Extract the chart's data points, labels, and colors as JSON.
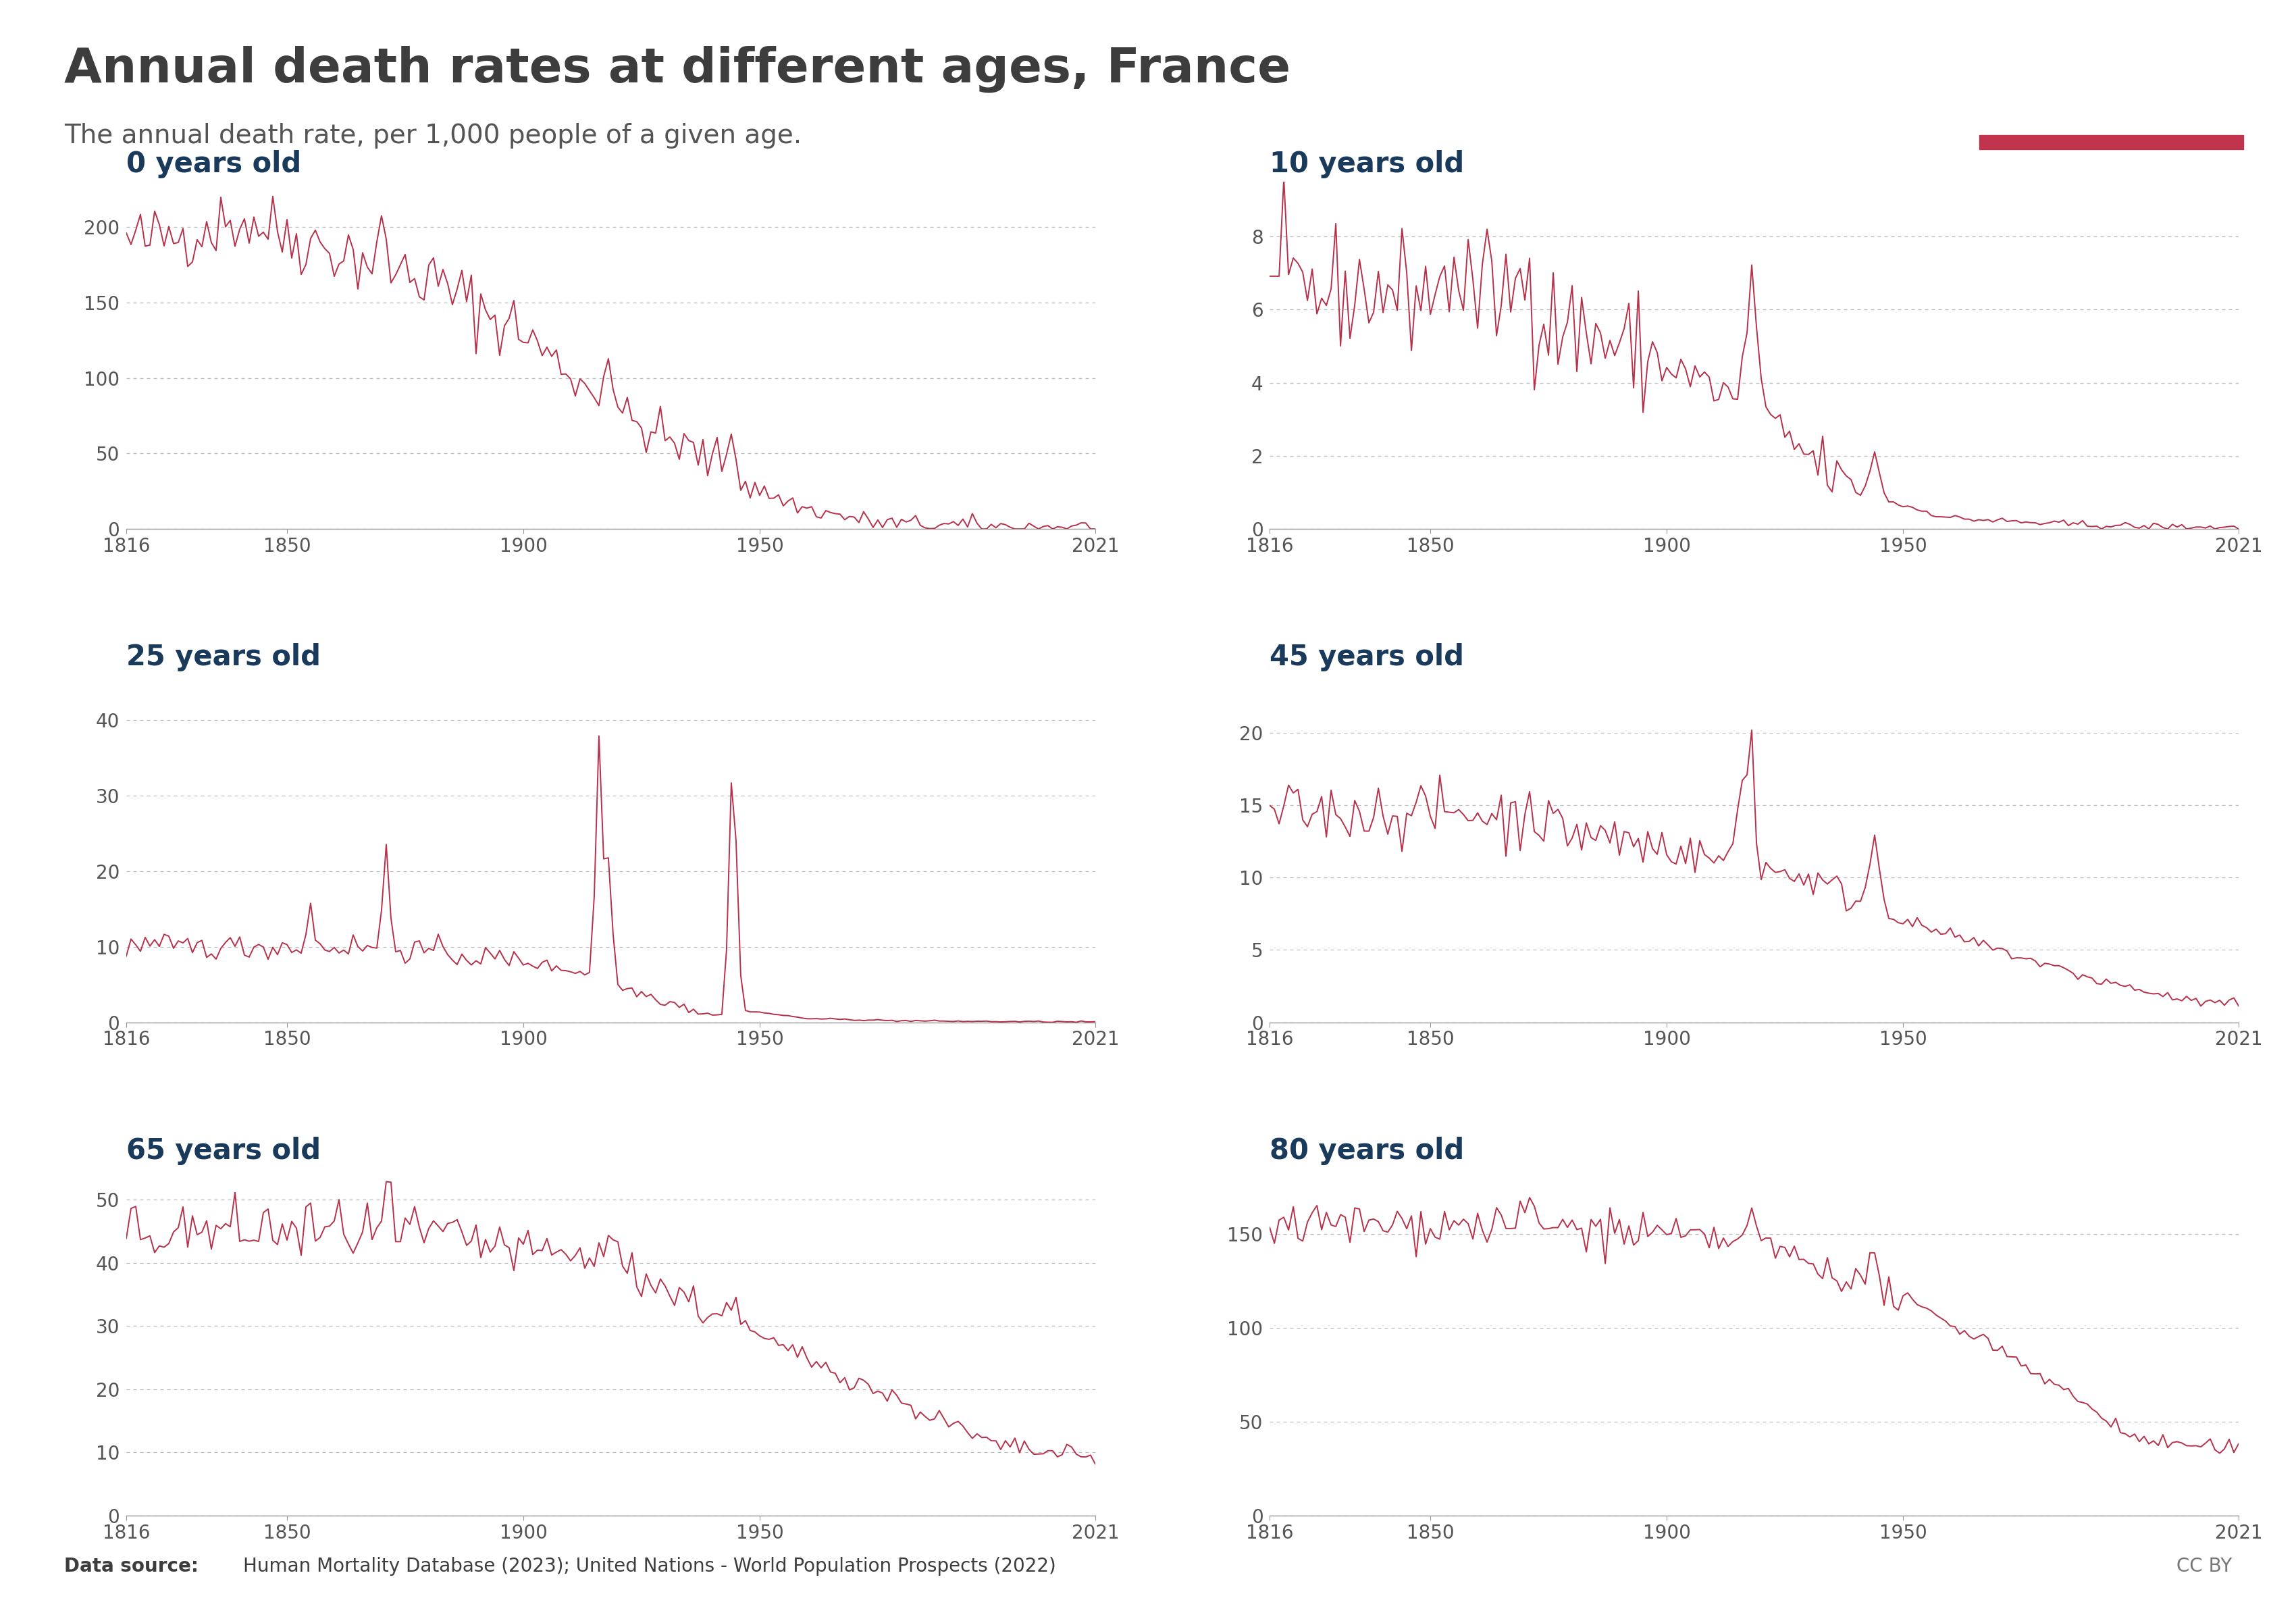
{
  "title": "Annual death rates at different ages, France",
  "subtitle": "The annual death rate, per 1,000 people of a given age.",
  "source_bold": "Data source: ",
  "source_rest": "Human Mortality Database (2023); United Nations - World Population Prospects (2022)",
  "cc_by": "CC BY",
  "line_color": "#B5324A",
  "background_color": "#FFFFFF",
  "grid_color": "#BBBBBB",
  "title_color": "#3d3d3d",
  "subtitle_color": "#555555",
  "panel_title_color": "#1a3a5c",
  "owid_box_color": "#1a2e52",
  "owid_red": "#C0334D",
  "panels": [
    {
      "label": "0 years old",
      "ylim": [
        0,
        230
      ],
      "yticks": [
        0,
        50,
        100,
        150,
        200
      ],
      "row": 0,
      "col": 0
    },
    {
      "label": "10 years old",
      "ylim": [
        0,
        9.5
      ],
      "yticks": [
        0,
        2,
        4,
        6,
        8
      ],
      "row": 0,
      "col": 1
    },
    {
      "label": "25 years old",
      "ylim": [
        0,
        46
      ],
      "yticks": [
        0,
        10,
        20,
        30,
        40
      ],
      "row": 1,
      "col": 0
    },
    {
      "label": "45 years old",
      "ylim": [
        0,
        24
      ],
      "yticks": [
        0,
        5,
        10,
        15,
        20
      ],
      "row": 1,
      "col": 1
    },
    {
      "label": "65 years old",
      "ylim": [
        0,
        55
      ],
      "yticks": [
        0,
        10,
        20,
        30,
        40,
        50
      ],
      "row": 2,
      "col": 0
    },
    {
      "label": "80 years old",
      "ylim": [
        0,
        185
      ],
      "yticks": [
        0,
        50,
        100,
        150
      ],
      "row": 2,
      "col": 1
    }
  ],
  "year_start": 1816,
  "year_end": 2021
}
